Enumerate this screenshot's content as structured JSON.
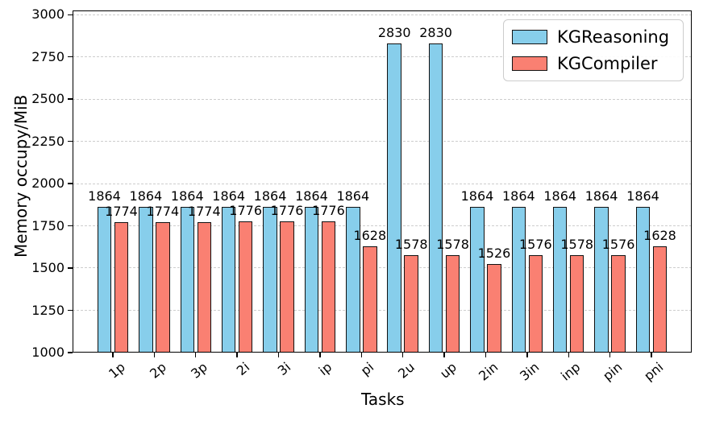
{
  "chart_data": {
    "type": "bar",
    "title": "",
    "xlabel": "Tasks",
    "ylabel": "Memory occupy/MiB",
    "categories": [
      "1p",
      "2p",
      "3p",
      "2i",
      "3i",
      "ip",
      "pi",
      "2u",
      "up",
      "2in",
      "3in",
      "inp",
      "pin",
      "pni"
    ],
    "series": [
      {
        "name": "KGReasoning",
        "color": "#87CEEB",
        "values": [
          1864,
          1864,
          1864,
          1864,
          1864,
          1864,
          1864,
          2830,
          2830,
          1864,
          1864,
          1864,
          1864,
          1864
        ]
      },
      {
        "name": "KGCompiler",
        "color": "#FA8072",
        "values": [
          1774,
          1774,
          1774,
          1776,
          1776,
          1776,
          1628,
          1578,
          1578,
          1526,
          1576,
          1578,
          1576,
          1628
        ]
      }
    ],
    "ylim": [
      1000,
      3025
    ],
    "yticks": [
      1000,
      1250,
      1500,
      1750,
      2000,
      2250,
      2500,
      2750,
      3000
    ],
    "bar_labels_shown": true,
    "grid": "horizontal-dashed",
    "gridline_color": "#cdcdcd",
    "bar_edge_color": "#111111",
    "legend_position": "upper-right",
    "x_tick_rotation_deg": 40
  }
}
